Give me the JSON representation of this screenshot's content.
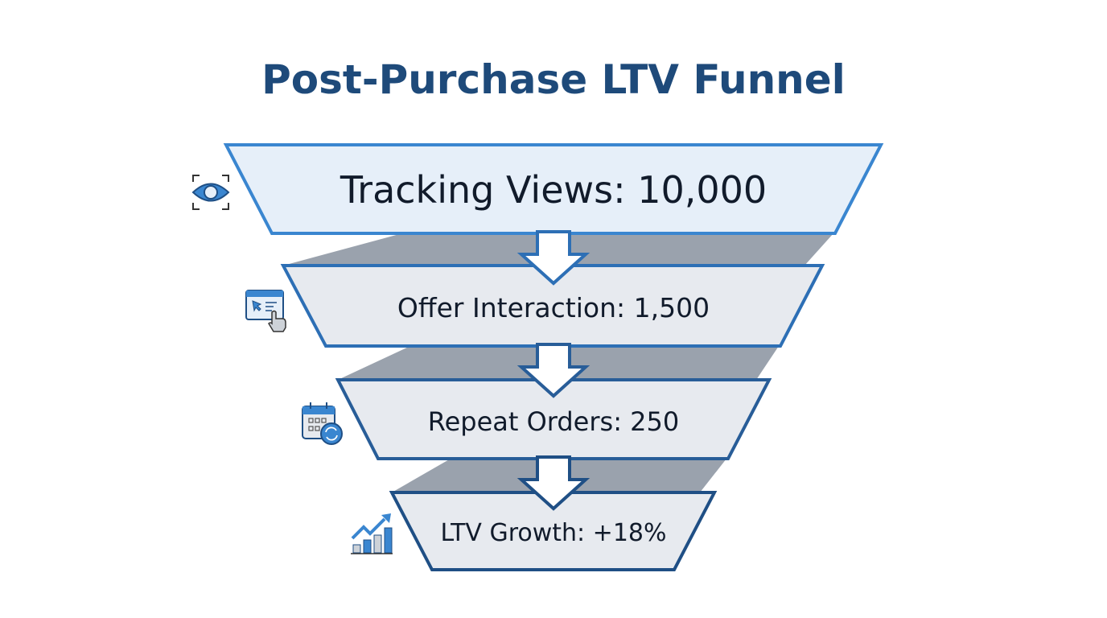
{
  "title": "Post-Purchase LTV Funnel",
  "stages": [
    {
      "label": "Tracking Views: 10,000",
      "icon": "eye-icon"
    },
    {
      "label": "Offer Interaction: 1,500",
      "icon": "browser-click-icon"
    },
    {
      "label": "Repeat Orders: 250",
      "icon": "calendar-repeat-icon"
    },
    {
      "label": "LTV Growth: +18%",
      "icon": "growth-chart-icon"
    }
  ],
  "colors": {
    "title": "#1e4a7a",
    "accent": "#3a86d0",
    "stage_fill_top": "#e6eff9",
    "stage_fill": "#e7eaef",
    "shadow": "#9aa2ad"
  }
}
